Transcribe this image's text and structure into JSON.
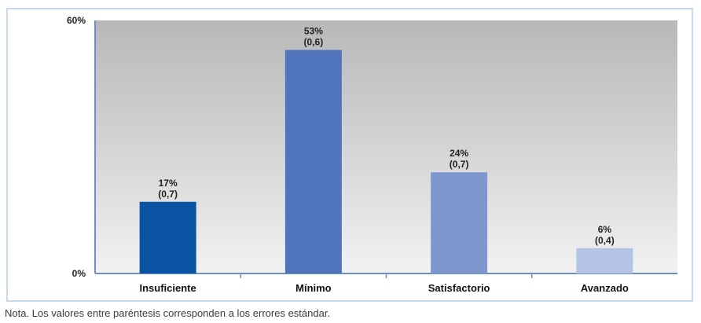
{
  "chart_data": {
    "type": "bar",
    "categories": [
      "Insuficiente",
      "Mínimo",
      "Satisfactorio",
      "Avanzado"
    ],
    "values": [
      17,
      53,
      24,
      6
    ],
    "standard_errors": [
      0.7,
      0.6,
      0.7,
      0.4
    ],
    "data_labels": [
      "17%",
      "53%",
      "24%",
      "6%"
    ],
    "se_labels": [
      "(0,7)",
      "(0,6)",
      "(0,7)",
      "(0,4)"
    ],
    "bar_colors": [
      "#0a52a2",
      "#5175bd",
      "#7e98cf",
      "#b3c4e6"
    ],
    "ylim": [
      0,
      60
    ],
    "yticks": [
      0,
      60
    ],
    "ytick_labels": [
      "0%",
      "60%"
    ],
    "xlabel": "",
    "ylabel": "",
    "grid": false,
    "plot_background": "gradient-gray"
  },
  "note": "Nota. Los valores entre paréntesis corresponden a los errores estándar."
}
